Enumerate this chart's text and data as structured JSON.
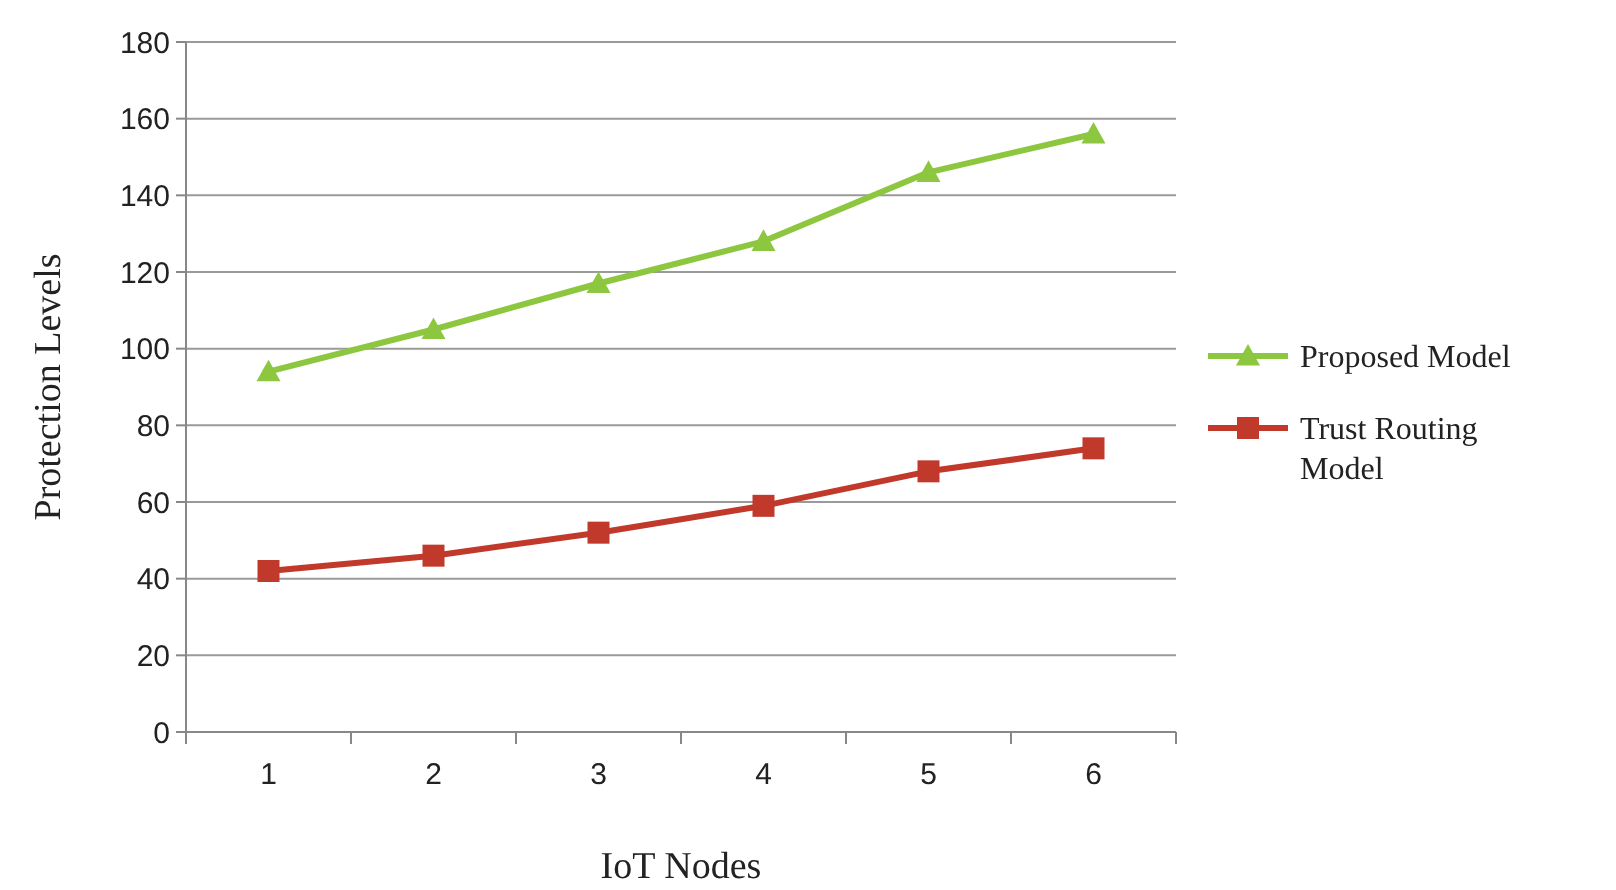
{
  "chart_data": {
    "type": "line",
    "xlabel": "IoT Nodes",
    "ylabel": "Protection Levels",
    "categories": [
      "1",
      "2",
      "3",
      "4",
      "5",
      "6"
    ],
    "series": [
      {
        "name": "Proposed Model",
        "color": "#8dc63f",
        "values": [
          94,
          105,
          117,
          128,
          146,
          156
        ],
        "marker": "triangle"
      },
      {
        "name": "Trust Routing Model",
        "color": "#c0392b",
        "values": [
          42,
          46,
          52,
          59,
          68,
          74
        ],
        "marker": "square"
      }
    ],
    "ylim": [
      0,
      180
    ],
    "yticks": [
      0,
      20,
      40,
      60,
      80,
      100,
      120,
      140,
      160,
      180
    ],
    "grid": "y",
    "legend": "right",
    "line_style": "solid"
  }
}
